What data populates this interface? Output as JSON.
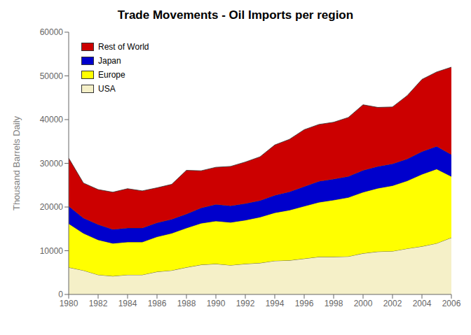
{
  "chart_data": {
    "type": "area",
    "stacked": true,
    "title": "Trade Movements - Oil Imports per region",
    "ylabel": "Thousand Barrels Daily",
    "x": [
      1980,
      1981,
      1982,
      1983,
      1984,
      1985,
      1986,
      1987,
      1988,
      1989,
      1990,
      1991,
      1992,
      1993,
      1994,
      1995,
      1996,
      1997,
      1998,
      1999,
      2000,
      2001,
      2002,
      2003,
      2004,
      2005,
      2006
    ],
    "series": [
      {
        "name": "USA",
        "color": "#f5f0c8",
        "values": [
          6200,
          5500,
          4500,
          4200,
          4500,
          4500,
          5200,
          5500,
          6200,
          6800,
          7000,
          6700,
          7000,
          7200,
          7700,
          7800,
          8200,
          8600,
          8600,
          8700,
          9400,
          9800,
          9900,
          10500,
          11000,
          11700,
          13000
        ]
      },
      {
        "name": "Europe",
        "color": "#ffff00",
        "values": [
          10000,
          8500,
          8000,
          7500,
          7500,
          7500,
          8000,
          8500,
          9000,
          9500,
          9800,
          9800,
          10000,
          10500,
          11000,
          11500,
          12000,
          12500,
          13000,
          13500,
          14000,
          14500,
          15000,
          15500,
          16500,
          17000,
          14000
        ]
      },
      {
        "name": "Japan",
        "color": "#0000cc",
        "values": [
          4000,
          3500,
          3500,
          3200,
          3200,
          3200,
          3200,
          3200,
          3200,
          3500,
          3800,
          3800,
          3800,
          3800,
          4000,
          4200,
          4500,
          4800,
          4800,
          4800,
          5000,
          5000,
          5000,
          5000,
          5200,
          5200,
          5000
        ]
      },
      {
        "name": "Rest of World",
        "color": "#cc0000",
        "values": [
          11000,
          8000,
          8000,
          8500,
          9000,
          8500,
          8000,
          8000,
          10000,
          8500,
          8500,
          9000,
          9500,
          10000,
          11500,
          12000,
          13000,
          13000,
          13000,
          13500,
          15000,
          13500,
          13000,
          14500,
          16500,
          17000,
          20000
        ]
      }
    ],
    "xlim": [
      1980,
      2006
    ],
    "xticks": [
      1980,
      1982,
      1984,
      1986,
      1988,
      1990,
      1992,
      1994,
      1996,
      1998,
      2000,
      2002,
      2004,
      2006
    ],
    "ylim": [
      0,
      60000
    ],
    "yticks": [
      0,
      10000,
      20000,
      30000,
      40000,
      50000,
      60000
    ],
    "grid": false,
    "legend": "upper left"
  }
}
